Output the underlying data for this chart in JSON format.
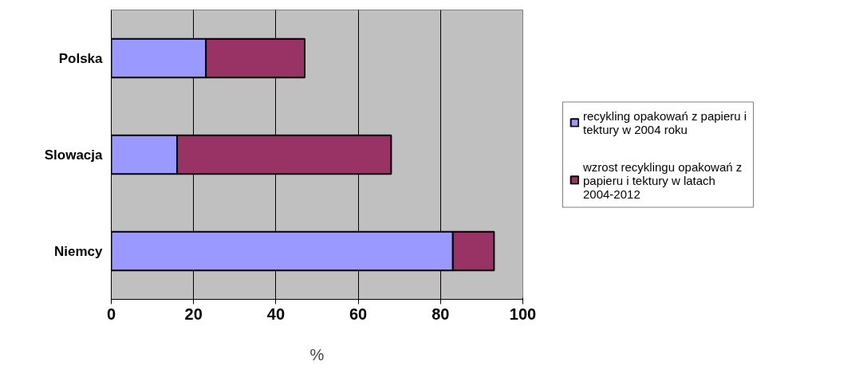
{
  "chart_data": {
    "type": "bar",
    "orientation": "horizontal",
    "stacked": true,
    "categories": [
      "Polska",
      "Slowacja",
      "Niemcy"
    ],
    "series": [
      {
        "name": "recykling opakowań z papieru i tektury w 2004 roku",
        "color": "#9999ff",
        "values": [
          23,
          16,
          83
        ]
      },
      {
        "name": "wzrost recyklingu opakowań z papieru i tektury w latach 2004-2012",
        "color": "#993366",
        "values": [
          24,
          52,
          10
        ]
      }
    ],
    "xlabel": "%",
    "xlim": [
      0,
      100
    ],
    "xticks": [
      0,
      20,
      40,
      60,
      80,
      100
    ],
    "grid": "x",
    "legend": "right"
  }
}
